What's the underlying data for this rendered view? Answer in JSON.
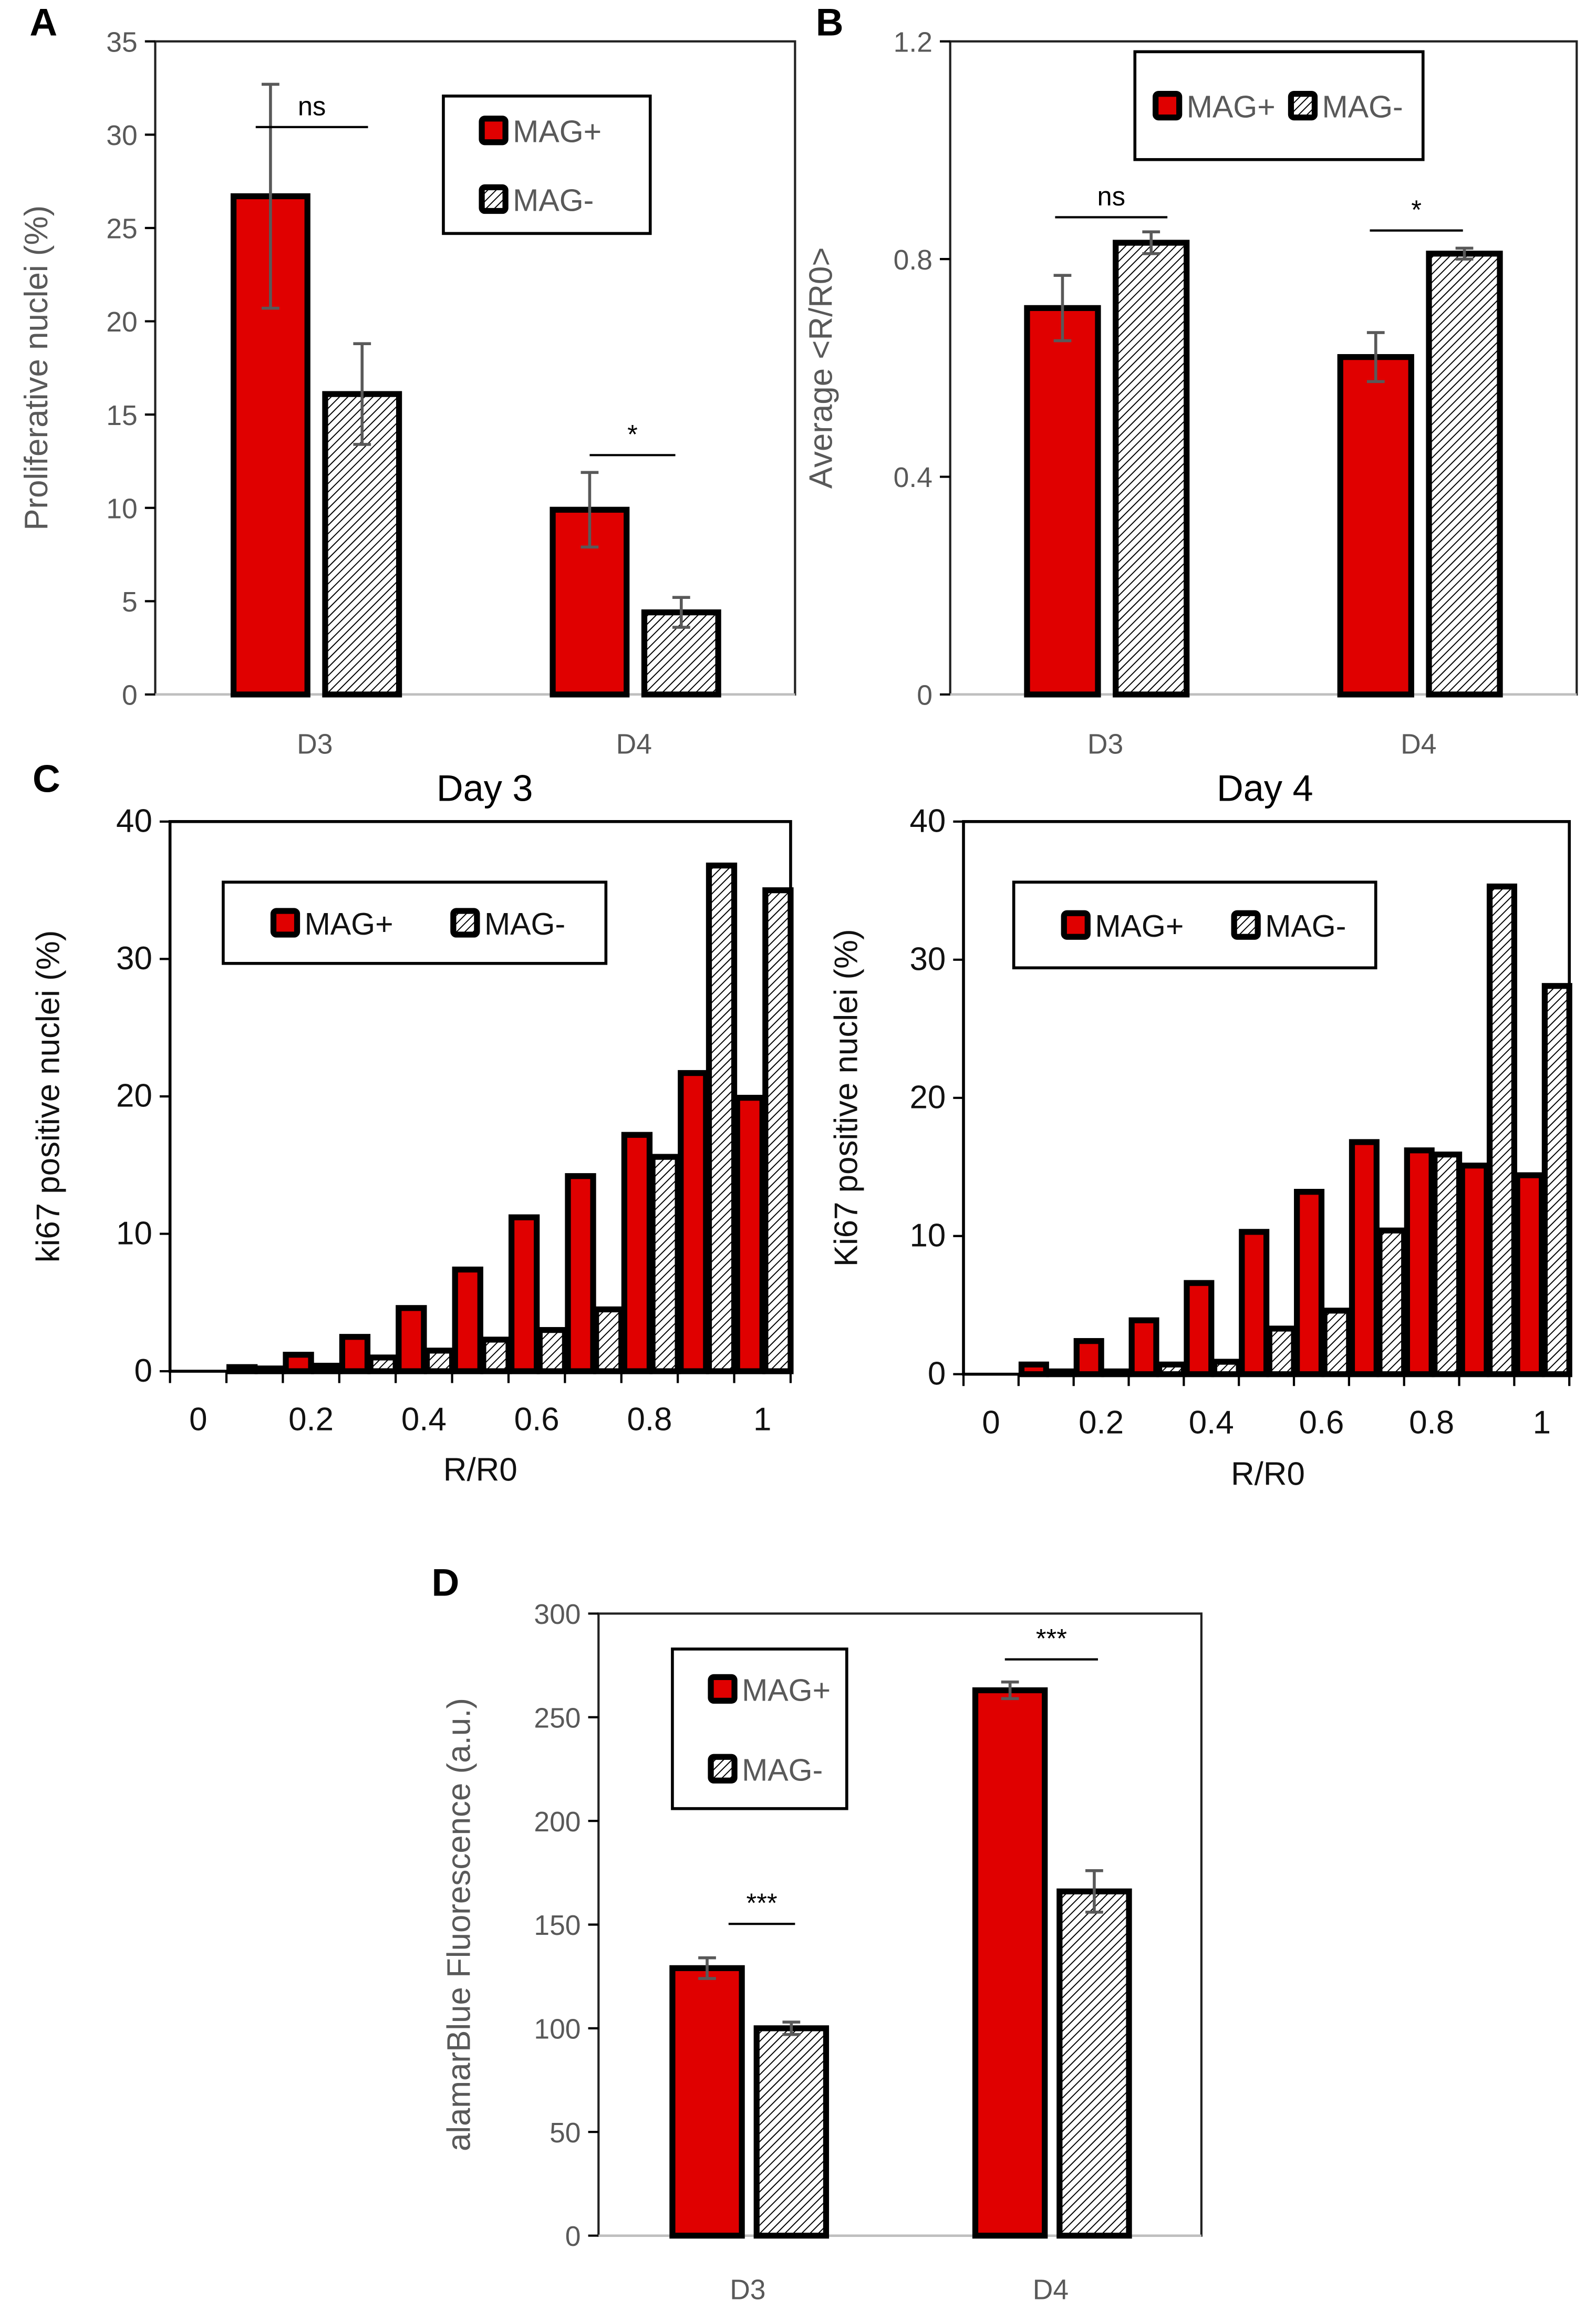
{
  "colors": {
    "mag_plus": "#e00000",
    "mag_minus_hatch": "#000000",
    "axis_text": "#595959"
  },
  "chart_data": [
    {
      "panel": "A",
      "type": "bar",
      "title": "",
      "xlabel": "",
      "ylabel": "Proliferative nuclei (%)",
      "categories": [
        "D3",
        "D4"
      ],
      "ylim": [
        0,
        35
      ],
      "yticks": [
        0,
        5,
        10,
        15,
        20,
        25,
        30,
        35
      ],
      "series": [
        {
          "name": "MAG+",
          "values": [
            26.7,
            9.9
          ],
          "errors": [
            6.0,
            2.0
          ]
        },
        {
          "name": "MAG-",
          "values": [
            16.1,
            4.4
          ],
          "errors": [
            2.7,
            0.8
          ]
        }
      ],
      "significance": [
        "ns",
        "*"
      ],
      "legend": "top-right"
    },
    {
      "panel": "B",
      "type": "bar",
      "title": "",
      "xlabel": "",
      "ylabel": "Average <R/R0>",
      "categories": [
        "D3",
        "D4"
      ],
      "ylim": [
        0,
        1.2
      ],
      "yticks": [
        0,
        0.4,
        0.8,
        1.2
      ],
      "series": [
        {
          "name": "MAG+",
          "values": [
            0.71,
            0.62
          ],
          "errors": [
            0.06,
            0.045
          ]
        },
        {
          "name": "MAG-",
          "values": [
            0.83,
            0.81
          ],
          "errors": [
            0.02,
            0.01
          ]
        }
      ],
      "significance": [
        "ns",
        "*"
      ],
      "legend": "top"
    },
    {
      "panel": "C",
      "type": "bar",
      "title": "Day 3",
      "xlabel": "R/R0",
      "ylabel": "ki67 positive nuclei (%)",
      "xticks": [
        "0",
        "0.2",
        "0.4",
        "0.6",
        "0.8",
        "1"
      ],
      "bins": [
        0.1,
        0.2,
        0.3,
        0.4,
        0.5,
        0.6,
        0.7,
        0.8,
        0.9,
        1.0
      ],
      "ylim": [
        0,
        40
      ],
      "yticks": [
        0,
        10,
        20,
        30,
        40
      ],
      "series": [
        {
          "name": "MAG+",
          "values": [
            0.3,
            1.2,
            2.5,
            4.6,
            7.4,
            11.2,
            14.2,
            17.2,
            21.7,
            19.9
          ]
        },
        {
          "name": "MAG-",
          "values": [
            0.2,
            0.4,
            1.0,
            1.5,
            2.3,
            3.0,
            4.5,
            15.6,
            36.8,
            35.0
          ]
        }
      ],
      "legend": "top-left"
    },
    {
      "panel": "",
      "type": "bar",
      "title": "Day 4",
      "xlabel": "R/R0",
      "ylabel": "Ki67 positive nuclei (%)",
      "xticks": [
        "0",
        "0.2",
        "0.4",
        "0.6",
        "0.8",
        "1"
      ],
      "bins": [
        0.1,
        0.2,
        0.3,
        0.4,
        0.5,
        0.6,
        0.7,
        0.8,
        0.9,
        1.0
      ],
      "ylim": [
        0,
        40
      ],
      "yticks": [
        0,
        10,
        20,
        30,
        40
      ],
      "series": [
        {
          "name": "MAG+",
          "values": [
            0.7,
            2.4,
            3.9,
            6.6,
            10.3,
            13.2,
            16.8,
            16.2,
            15.1,
            14.4
          ]
        },
        {
          "name": "MAG-",
          "values": [
            0.2,
            0.2,
            0.7,
            0.9,
            3.3,
            4.6,
            10.4,
            15.9,
            35.3,
            28.1
          ]
        }
      ],
      "legend": "top-left"
    },
    {
      "panel": "D",
      "type": "bar",
      "title": "",
      "xlabel": "",
      "ylabel": "alamarBlue Fluorescence (a.u.)",
      "categories": [
        "D3",
        "D4"
      ],
      "ylim": [
        0,
        300
      ],
      "yticks": [
        0,
        50,
        100,
        150,
        200,
        250,
        300
      ],
      "series": [
        {
          "name": "MAG+",
          "values": [
            129,
            263
          ],
          "errors": [
            5,
            4
          ]
        },
        {
          "name": "MAG-",
          "values": [
            100,
            166
          ],
          "errors": [
            3,
            10
          ]
        }
      ],
      "significance": [
        "***",
        "***"
      ],
      "legend": "top-left"
    }
  ]
}
